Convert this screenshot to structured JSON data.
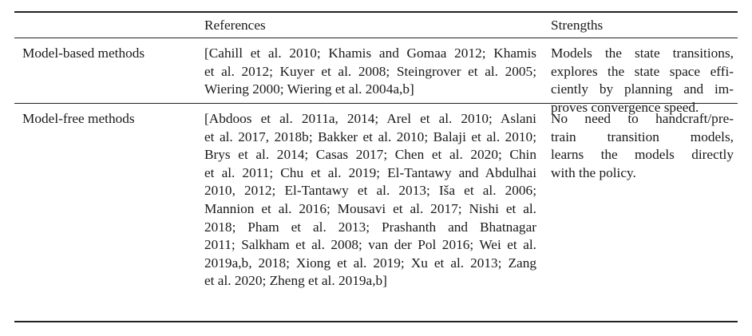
{
  "header": {
    "col1": "",
    "col2": "References",
    "col3": "Strengths"
  },
  "rows": [
    {
      "method": "Model-based methods",
      "references": [
        "[Cahill et al. 2010; Khamis and Gomaa 2012; Khamis",
        "et al. 2012; Kuyer et al. 2008; Steingrover et al. 2005;",
        "Wiering 2000; Wiering et al. 2004a,b]"
      ],
      "strengths": [
        "Models the state transitions,",
        "explores the state space effi-",
        "ciently by planning and im-",
        "proves convergence speed."
      ]
    },
    {
      "method": "Model-free methods",
      "references": [
        "[Abdoos et al. 2011a, 2014; Arel et al. 2010; Aslani",
        "et al. 2017, 2018b; Bakker et al. 2010; Balaji et al. 2010;",
        "Brys et al. 2014; Casas 2017; Chen et al. 2020; Chin",
        "et al. 2011; Chu et al. 2019; El-Tantawy and Abdulhai",
        "2010, 2012; El-Tantawy et al. 2013; Išа et al. 2006;",
        "Mannion et al. 2016; Mousavi et al. 2017; Nishi et al.",
        "2018; Pham et al. 2013; Prashanth and Bhatnagar",
        "2011; Salkham et al. 2008; van der Pol 2016; Wei et al.",
        "2019a,b, 2018; Xiong et al. 2019; Xu et al. 2013; Zang",
        "et al. 2020; Zheng et al. 2019a,b]"
      ],
      "strengths": [
        "No need to handcraft/pre-",
        "train transition models,",
        "learns the models directly",
        "with the policy."
      ]
    }
  ]
}
